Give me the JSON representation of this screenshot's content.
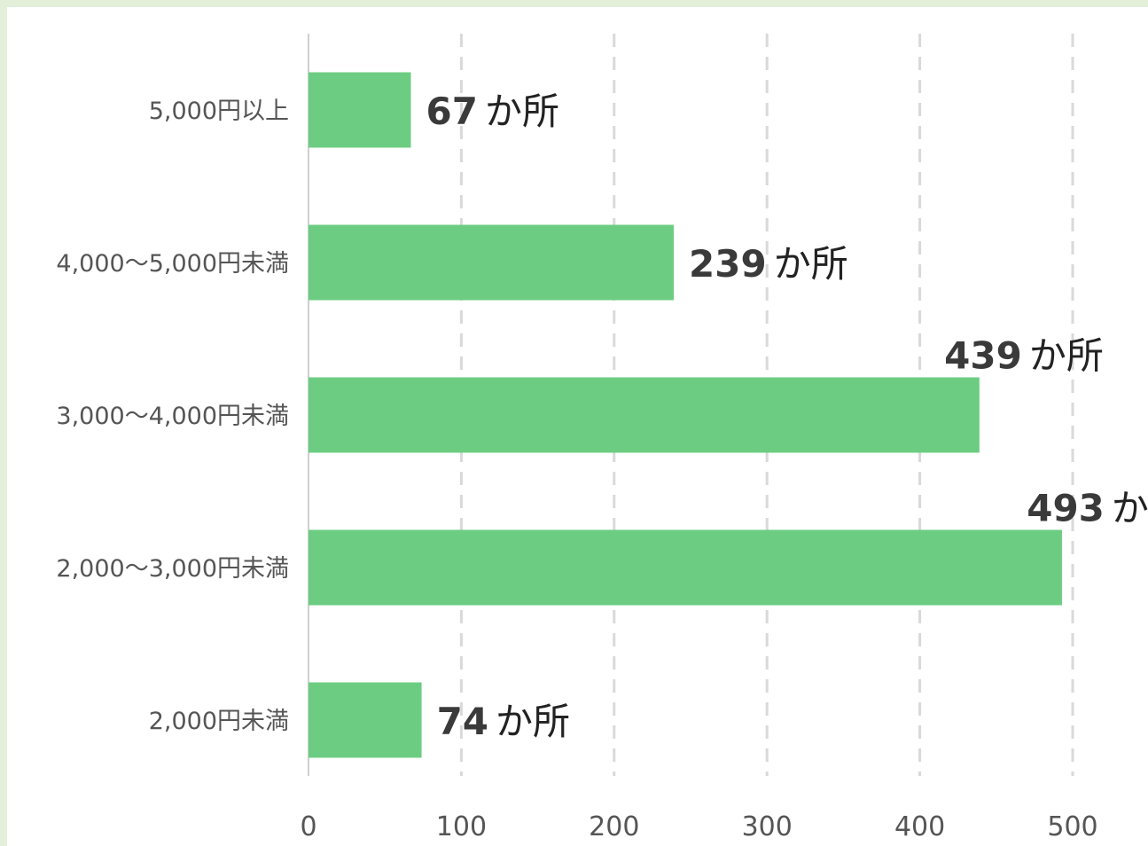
{
  "chart_data": {
    "type": "bar",
    "orientation": "horizontal",
    "categories": [
      "5,000円以上",
      "4,000～5,000円未満",
      "3,000～4,000円未満",
      "2,000～3,000円未満",
      "2,000円未満"
    ],
    "values": [
      67,
      239,
      439,
      493,
      74
    ],
    "value_unit": "か所",
    "xlim": [
      0,
      500
    ],
    "x_ticks": [
      0,
      100,
      200,
      300,
      400,
      500
    ],
    "grid": "vertical-dashed",
    "bar_color": "#6ccd82",
    "grid_color": "#d9d9d9",
    "background_color": "#e3efd9"
  }
}
